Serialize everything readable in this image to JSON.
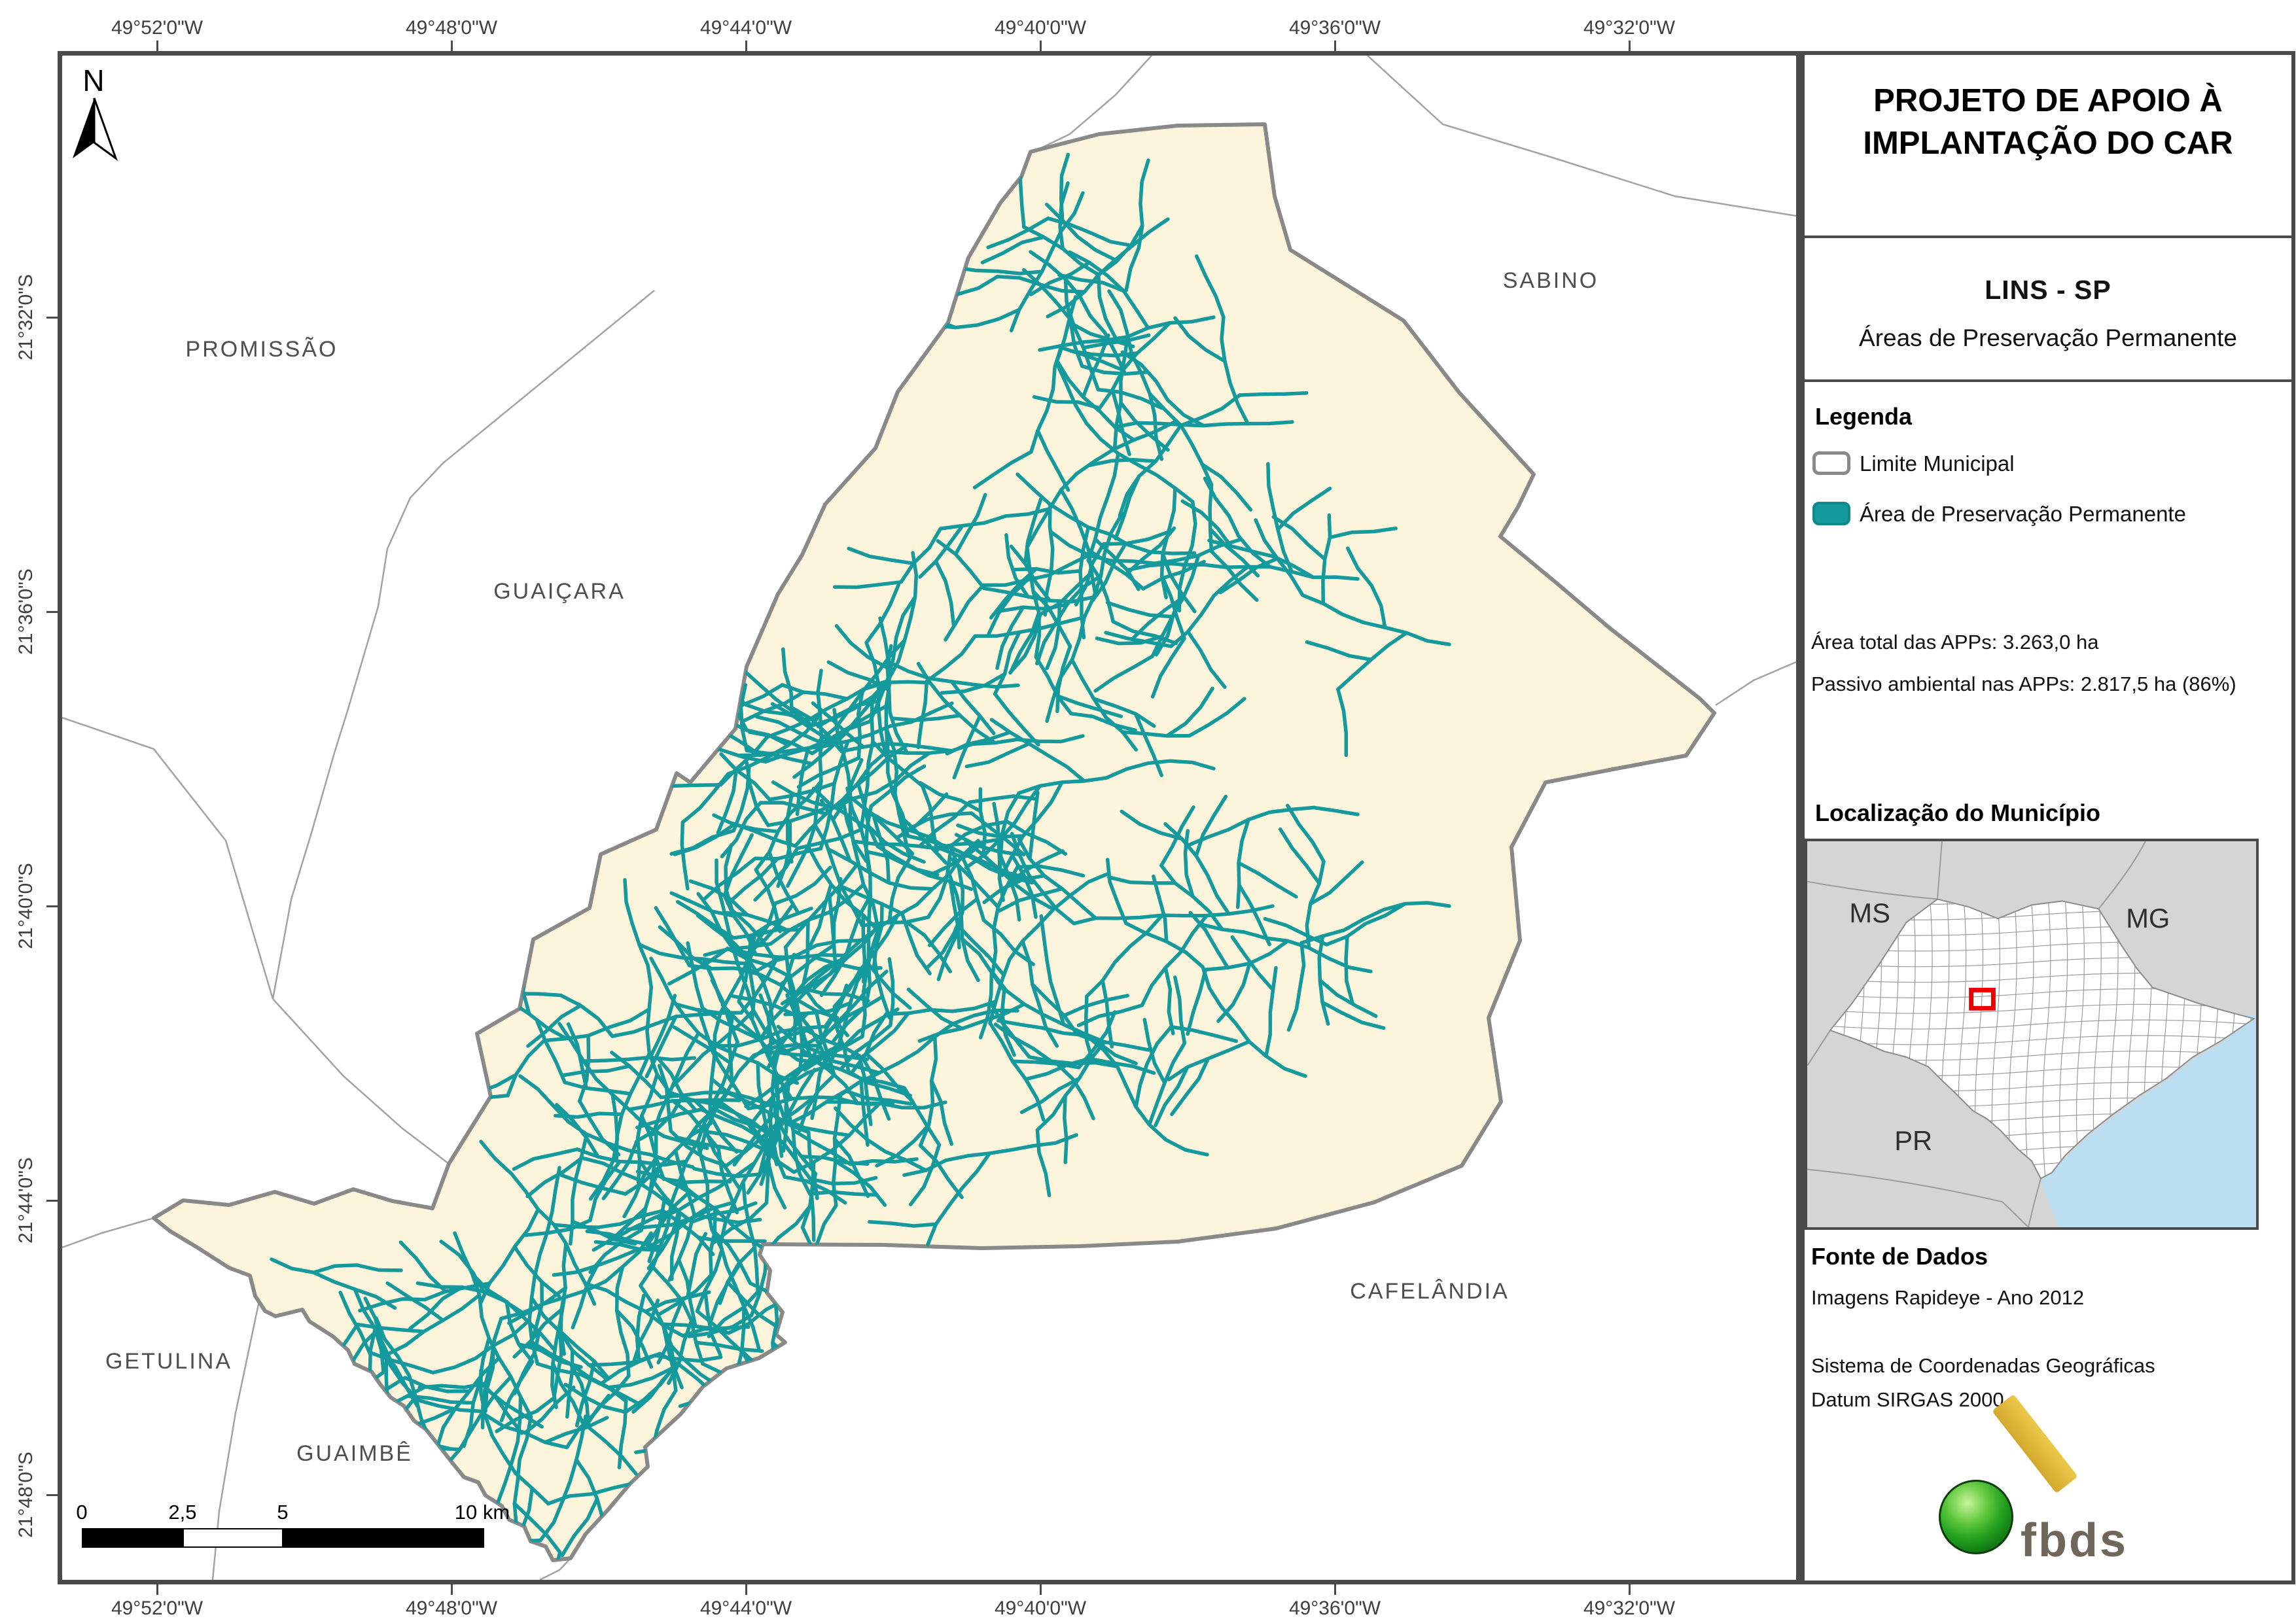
{
  "map": {
    "north_label": "N",
    "top_axis": [
      "49°52'0\"W",
      "49°48'0\"W",
      "49°44'0\"W",
      "49°40'0\"W",
      "49°36'0\"W",
      "49°32'0\"W"
    ],
    "bottom_axis": [
      "49°52'0\"W",
      "49°48'0\"W",
      "49°44'0\"W",
      "49°40'0\"W",
      "49°36'0\"W",
      "49°32'0\"W"
    ],
    "left_axis": [
      "21°32'0\"S",
      "21°36'0\"S",
      "21°40'0\"S",
      "21°44'0\"S",
      "21°48'0\"S"
    ],
    "municipalities": [
      "PROMISSÃO",
      "SABINO",
      "GUAIÇARA",
      "GETULINA",
      "GUAIMBÊ",
      "CAFELÂNDIA"
    ],
    "scalebar_labels": [
      "0",
      "2,5",
      "5",
      "10 km"
    ]
  },
  "panel": {
    "title_line1": "PROJETO DE APOIO À",
    "title_line2": "IMPLANTAÇÃO DO CAR",
    "subtitle": "LINS - SP",
    "subtitle2": "Áreas de Preservação Permanente",
    "legend": {
      "heading": "Legenda",
      "items": [
        {
          "label": "Limite Municipal",
          "swatch": "outline"
        },
        {
          "label": "Área de Preservação Permanente",
          "swatch": "teal"
        }
      ]
    },
    "stats": [
      "Área total das APPs: 3.263,0 ha",
      "Passivo ambiental nas APPs: 2.817,5 ha (86%)"
    ],
    "location": {
      "heading": "Localização do Município",
      "state_labels": [
        "MS",
        "MG",
        "PR"
      ]
    },
    "source": {
      "heading": "Fonte de Dados",
      "lines": [
        "Imagens Rapideye - Ano 2012",
        "Sistema de Coordenadas Geográficas",
        "Datum SIRGAS 2000"
      ]
    },
    "logo_text": "fbds"
  },
  "colors": {
    "app_teal": "#14999C",
    "municipality_fill": "#FCF5DC",
    "municipality_border": "#898989",
    "neighbor_line": "#A3A3A3",
    "frame": "#4A4A4A",
    "inset_bg": "#D5D5D5",
    "inset_ocean": "#BBDFF1",
    "red_marker": "#EE0000",
    "label_gray": "#4E4E4E"
  }
}
